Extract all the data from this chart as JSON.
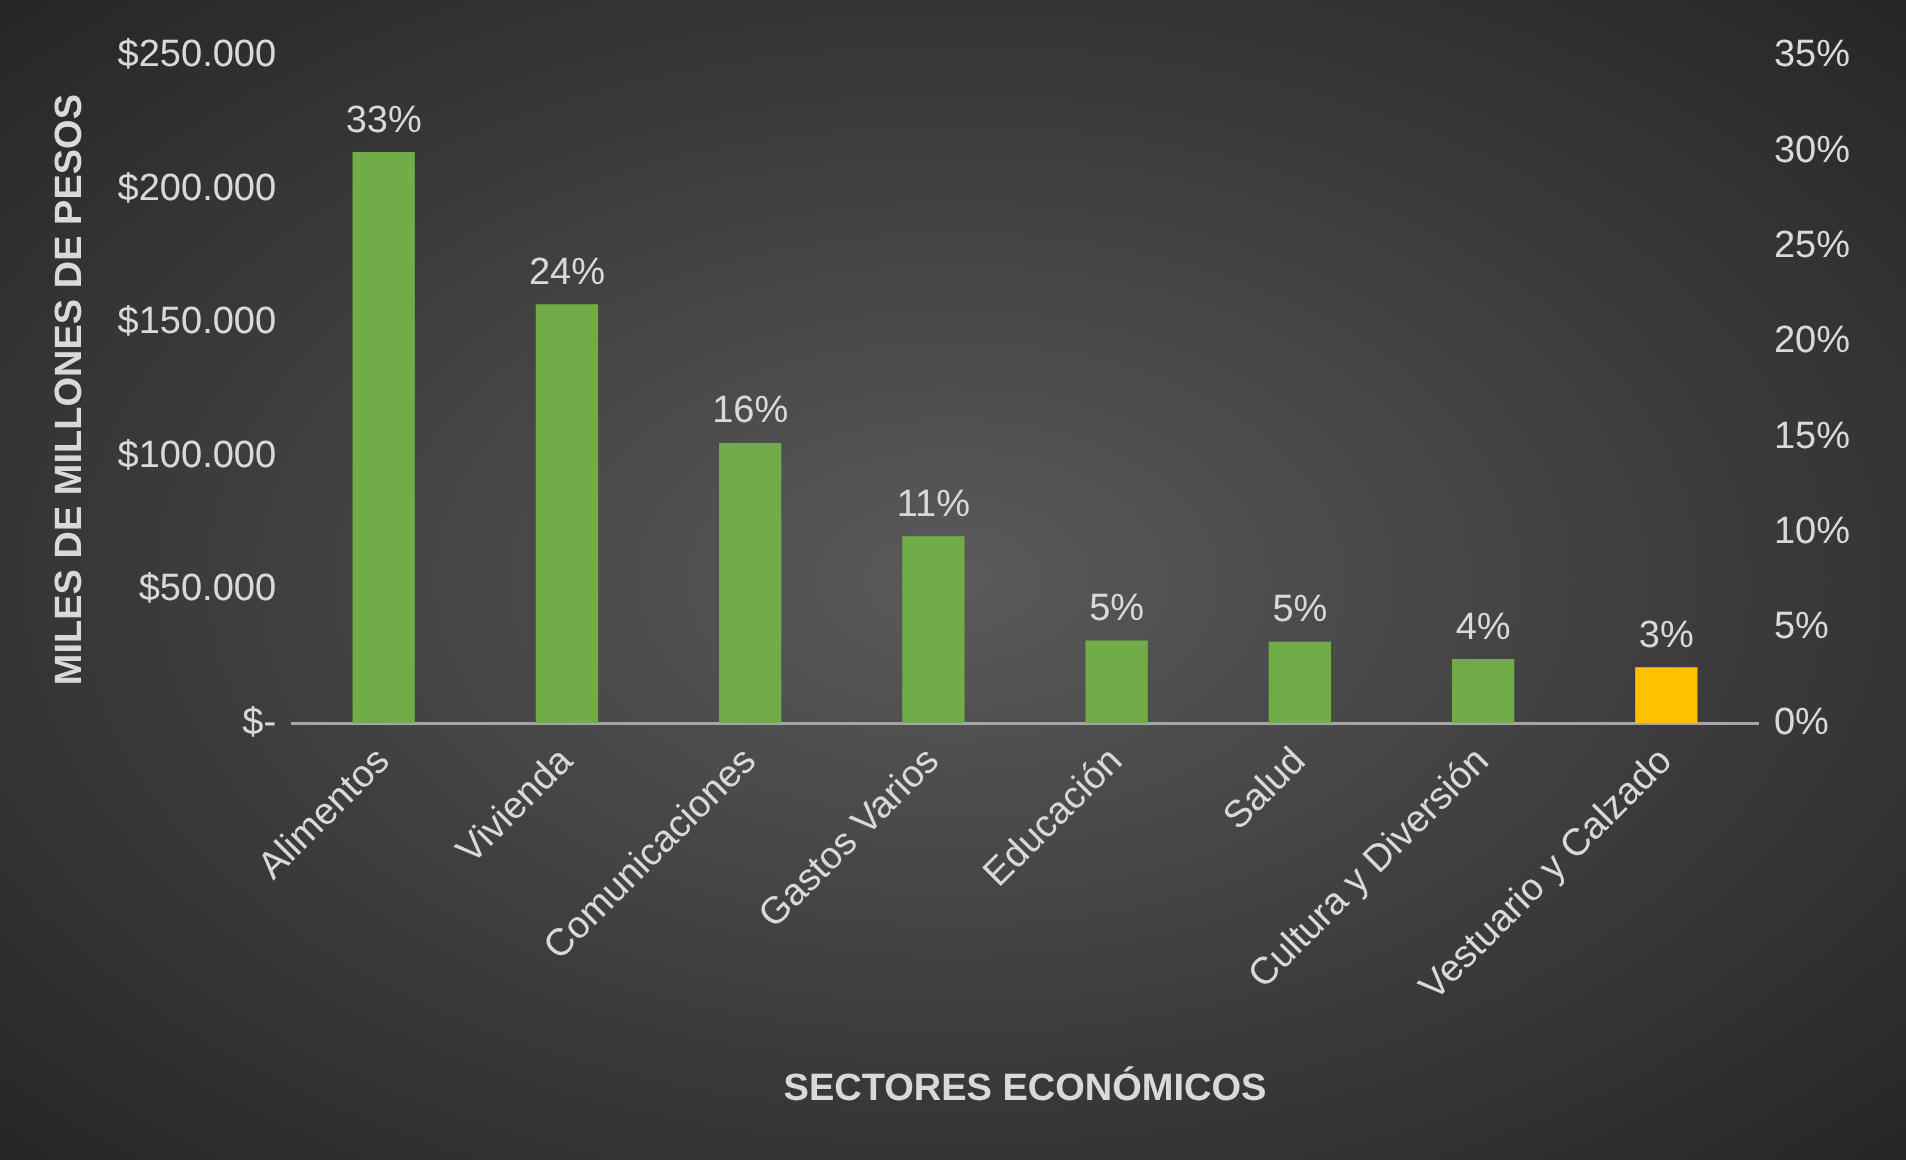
{
  "chart_data": {
    "type": "bar",
    "xlabel": "SECTORES ECONÓMICOS",
    "ylabel": "MILES DE MILLONES DE PESOS",
    "categories": [
      "Alimentos",
      "Vivienda",
      "Comunicaciones",
      "Gastos Varios",
      "Educación",
      "Salud",
      "Cultura y Diversión",
      "Vestuario y Calzado"
    ],
    "values": [
      214000,
      157000,
      105000,
      70000,
      31000,
      30500,
      24000,
      21000
    ],
    "colors": [
      "#70ad47",
      "#70ad47",
      "#70ad47",
      "#70ad47",
      "#70ad47",
      "#70ad47",
      "#70ad47",
      "#ffc000"
    ],
    "annotations": [
      {
        "text": "33%",
        "x": "Alimentos",
        "y": 214000
      },
      {
        "text": "24%",
        "x": "Vivienda",
        "y": 157000
      },
      {
        "text": "16%",
        "x": "Comunicaciones",
        "y": 105000
      },
      {
        "text": "11%",
        "x": "Gastos Varios",
        "y": 70000
      },
      {
        "text": "5%",
        "x": "Educación",
        "y": 31000
      },
      {
        "text": "5%",
        "x": "Salud",
        "y": 30500
      },
      {
        "text": "4%",
        "x": "Cultura y Diversión",
        "y": 24000
      },
      {
        "text": "3%",
        "x": "Vestuario y Calzado",
        "y": 21000
      }
    ],
    "ylim": [
      0,
      250000
    ],
    "yticks": [
      {
        "value": 0,
        "label": "$-"
      },
      {
        "value": 50000,
        "label": "$50.000"
      },
      {
        "value": 100000,
        "label": "$100.000"
      },
      {
        "value": 150000,
        "label": "$150.000"
      },
      {
        "value": 200000,
        "label": "$200.000"
      },
      {
        "value": 250000,
        "label": "$250.000"
      }
    ],
    "y2lim": [
      0,
      35
    ],
    "y2ticks": [
      {
        "value": 0,
        "label": "0%"
      },
      {
        "value": 5,
        "label": "5%"
      },
      {
        "value": 10,
        "label": "10%"
      },
      {
        "value": 15,
        "label": "15%"
      },
      {
        "value": 20,
        "label": "20%"
      },
      {
        "value": 25,
        "label": "25%"
      },
      {
        "value": 30,
        "label": "30%"
      },
      {
        "value": 35,
        "label": "35%"
      }
    ],
    "grid": false,
    "legend": false
  }
}
